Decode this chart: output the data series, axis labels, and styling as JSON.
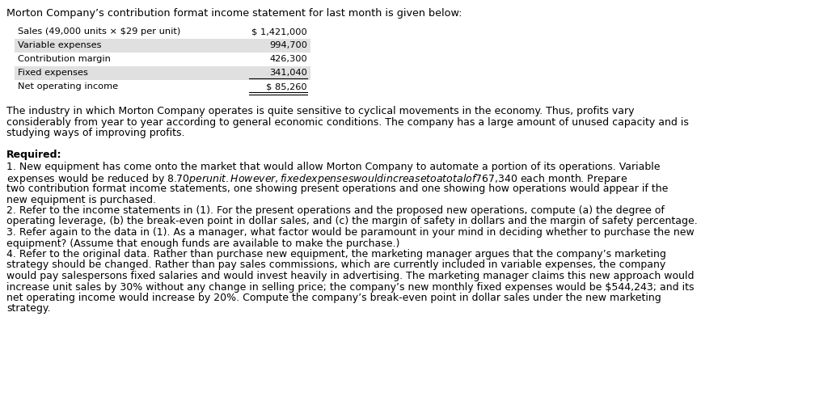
{
  "bg_color": "#ffffff",
  "text_color": "#000000",
  "teal_color": "#1a6b6b",
  "title_text": "Morton Company’s contribution format income statement for last month is given below:",
  "table_rows": [
    {
      "label": "Sales (49,000 units × $29 per unit)",
      "value": "$ 1,421,000",
      "shaded": false
    },
    {
      "label": "Variable expenses",
      "value": "994,700",
      "shaded": true
    },
    {
      "label": "Contribution margin",
      "value": "426,300",
      "shaded": false
    },
    {
      "label": "Fixed expenses",
      "value": "341,040",
      "shaded": true
    },
    {
      "label": "Net operating income",
      "value": "$ 85,260",
      "shaded": false,
      "double_underline": true
    }
  ],
  "shaded_color": "#e0e0e0",
  "para1_lines": [
    "The industry in which Morton Company operates is quite sensitive to cyclical movements in the economy. Thus, profits vary",
    "considerably from year to year according to general economic conditions. The company has a large amount of unused capacity and is",
    "studying ways of improving profits."
  ],
  "req_label": "Required:",
  "req_items": [
    [
      "1. New equipment has come onto the market that would allow Morton Company to automate a portion of its operations. Variable",
      "expenses would be reduced by $8.70 per unit. However, fixed expenses would increase to a total of $767,340 each month. Prepare",
      "two contribution format income statements, one showing present operations and one showing how operations would appear if the",
      "new equipment is purchased."
    ],
    [
      "2. Refer to the income statements in (1). For the present operations and the proposed new operations, compute (a) the degree of",
      "operating leverage, (b) the break-even point in dollar sales, and (c) the margin of safety in dollars and the margin of safety percentage."
    ],
    [
      "3. Refer again to the data in (1). As a manager, what factor would be paramount in your mind in deciding whether to purchase the new",
      "equipment? (Assume that enough funds are available to make the purchase.)"
    ],
    [
      "4. Refer to the original data. Rather than purchase new equipment, the marketing manager argues that the company’s marketing",
      "strategy should be changed. Rather than pay sales commissions, which are currently included in variable expenses, the company",
      "would pay salespersons fixed salaries and would invest heavily in advertising. The marketing manager claims this new approach would",
      "increase unit sales by 30% without any change in selling price; the company’s new monthly fixed expenses would be $544,243; and its",
      "net operating income would increase by 20%. Compute the company’s break-even point in dollar sales under the new marketing",
      "strategy."
    ]
  ],
  "font_size_title": 9.2,
  "font_size_table": 8.2,
  "font_size_body": 9.0,
  "font_size_body_small": 8.8
}
